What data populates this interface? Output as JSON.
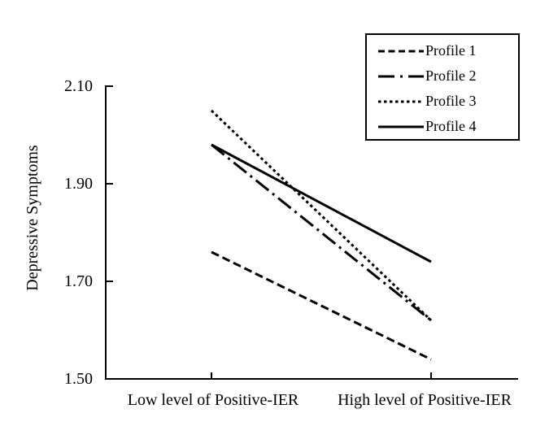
{
  "figure": {
    "background": "#ffffff",
    "foreground": "#000000"
  },
  "chart_data": {
    "type": "line",
    "title": "",
    "xlabel": "",
    "ylabel": "Depressive Symptoms",
    "categories": [
      "Low level of Positive-IER",
      "High level of Positive-IER"
    ],
    "ylim": [
      1.5,
      2.1
    ],
    "ytick_values": [
      2.1,
      1.9,
      1.7,
      1.5
    ],
    "ytick_labels": [
      "2.10",
      "1.90",
      "1.70",
      "1.50"
    ],
    "grid": false,
    "legend_position": "top-right",
    "line_color": "#000000",
    "series": [
      {
        "name": "Profile 1",
        "style": "dashed",
        "values": [
          1.76,
          1.54
        ]
      },
      {
        "name": "Profile 2",
        "style": "dashdot",
        "values": [
          1.98,
          1.62
        ]
      },
      {
        "name": "Profile 3",
        "style": "dotted",
        "values": [
          2.05,
          1.62
        ]
      },
      {
        "name": "Profile 4",
        "style": "solid",
        "values": [
          1.98,
          1.74
        ]
      }
    ]
  }
}
